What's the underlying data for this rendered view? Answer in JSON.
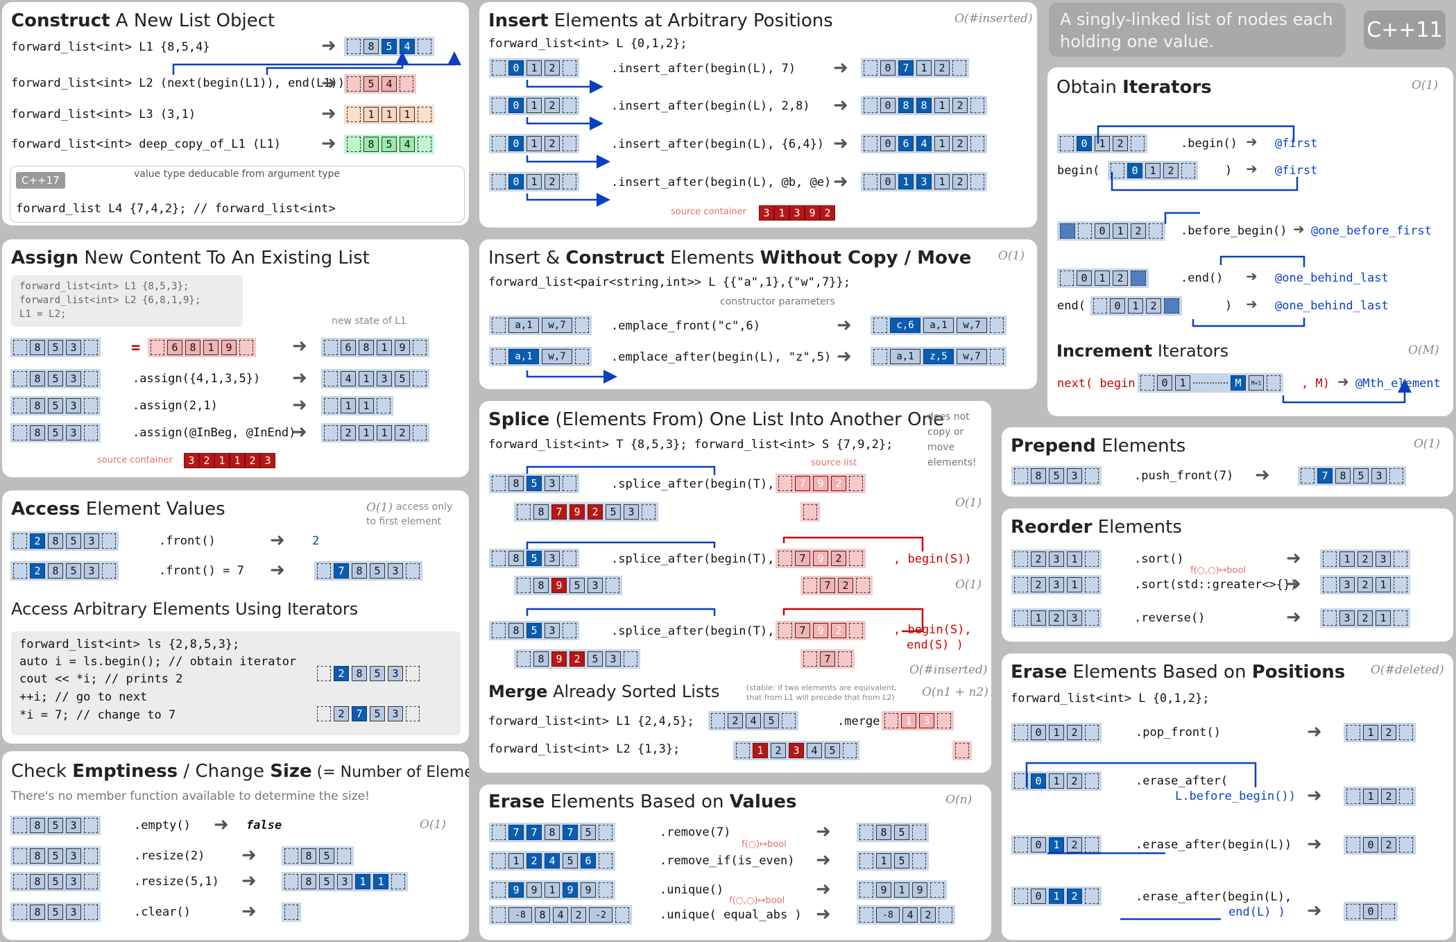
{
  "banner": {
    "intro": "A singly-linked list of nodes each holding one value.",
    "standard": "C++11"
  },
  "construct": {
    "title_b": "Construct",
    "title": " A New List Object",
    "l1": "forward_list<int> L1 {8,5,4}",
    "l2": "forward_list<int> L2 (next(begin(L1)), end(L1))",
    "l3": "forward_list<int> L3 (3,1)",
    "l4": "forward_list<int> deep_copy_of_L1 (L1)",
    "cpp17_tag": "C++17",
    "deduce_note": "value type deducable from argument type",
    "ctad_line": "forward_list      L4  {7,4,2};    // forward_list<int>"
  },
  "assign": {
    "title_b": "Assign",
    "title": " New Content To An Existing List",
    "code": [
      "forward_list<int> L1 {8,5,3};",
      "forward_list<int> L2 {6,8,1,9};",
      "L1              =   L2;"
    ],
    "new_state": "new state of L1",
    "eq": "=",
    "a1": ".assign({4,1,3,5})",
    "a2": ".assign(2,1)",
    "a3": ".assign(@InBeg, @InEnd)",
    "source": "source container"
  },
  "access": {
    "title_b": "Access",
    "title": " Element Values",
    "cx": "O(1)",
    "note1": "access only",
    "note2": "to first element",
    "f1": ".front()",
    "f1r": "2",
    "f2": ".front() = 7",
    "it_title": "Access Arbitrary Elements Using Iterators",
    "code": [
      "forward_list<int> ls {2,8,5,3};",
      "auto i = ls.begin();  // obtain iterator",
      "cout << *i;           // prints 2",
      "++i;                  // go to next",
      "*i = 7;               // change to 7"
    ]
  },
  "empty": {
    "title_a": "Check ",
    "title_b1": "Emptiness",
    "title_m": " / Change ",
    "title_b2": "Size",
    "title_e": " (= Number of Elements)",
    "note": "There's no member function available to determine the size!",
    "e1": ".empty()",
    "e1r": "false",
    "cx": "O(1)",
    "e2": ".resize(2)",
    "e3": ".resize(5,1)",
    "e4": ".clear()"
  },
  "insert": {
    "title_b": "Insert",
    "title": " Elements at Arbitrary Positions",
    "cx": "O(#inserted)",
    "decl": "forward_list<int> L {0,1,2};",
    "i1": ".insert_after(begin(L), 7)",
    "i2": ".insert_after(begin(L), 2,8)",
    "i3": ".insert_after(begin(L), {6,4})",
    "i4": ".insert_after(begin(L), @b, @e)",
    "source": "source container"
  },
  "emplace": {
    "title_a": "Insert & ",
    "title_b1": "Construct",
    "title_m": " Elements ",
    "title_b2": "Without Copy / Move",
    "cx": "O(1)",
    "decl": "forward_list<pair<string,int>> L {{\"a\",1},{\"w\",7}};",
    "ctor": "constructor parameters",
    "e1": ".emplace_front(\"c\",6)",
    "e2": ".emplace_after(begin(L), \"z\",5)"
  },
  "splice": {
    "title_b": "Splice",
    "title": " (Elements From) One List Into Another One",
    "note": [
      "does not",
      "copy or",
      "move",
      "elements!"
    ],
    "decl": "forward_list<int> T {8,5,3};   forward_list<int> S {7,9,2};",
    "s1": ".splice_after(begin(T),",
    "s2": ".splice_after(begin(T),",
    "s2b": ", begin(S))",
    "s3": ".splice_after(begin(T),",
    "s3b": ", begin(S),",
    "s3c": "end(S)  )",
    "src": "source list",
    "cx1": "O(1)",
    "cx2": "O(1)",
    "cx3": "O(#inserted)"
  },
  "merge": {
    "title_b": "Merge",
    "title": " Already Sorted Lists",
    "stable": "(stable: if two elements are equivalent, that from L1 will precede that from L2)",
    "cx": "O(n1 + n2)",
    "l1": "forward_list<int> L1 {2,4,5};",
    "l2": "forward_list<int> L2 {1,3};",
    "op": ".merge("
  },
  "erase_val": {
    "title_a": "Erase",
    "title_m": " Elements Based on ",
    "title_b": "Values",
    "cx": "O(n)",
    "r1": ".remove(7)",
    "r2": ".remove_if(is_even)",
    "r3": ".unique()",
    "r4": ".unique( equal_abs )",
    "pred": "f(○)↦bool",
    "pred2": "f(○,○)↦bool"
  },
  "iterators": {
    "title_a": "Obtain ",
    "title_b": "Iterators",
    "cx": "O(1)",
    "b1": ".begin()",
    "b1r": "@first",
    "b2": "begin(",
    "b2r": "@first",
    "bb": ".before_begin()",
    "bbr": "@one_before_first",
    "e1": ".end()",
    "e1r": "@one_behind_last",
    "e2": "end(",
    "e2r": "@one_behind_last",
    "inc_b": "Increment",
    "inc": " Iterators",
    "inc_cx": "O(M)",
    "next": "next( begin(",
    "next_m": ", M)",
    "next_r": "@Mth_element",
    "pp": "++"
  },
  "prepend": {
    "title_b": "Prepend",
    "title": " Elements",
    "cx": "O(1)",
    "op": ".push_front(7)"
  },
  "reorder": {
    "title_b": "Reorder",
    "title": " Elements",
    "o1": ".sort()",
    "o2": ".sort(std::greater<>{})",
    "o3": ".reverse()",
    "pred": "f(○,○)↦bool"
  },
  "erase_pos": {
    "title_a": "Erase",
    "title_m": " Elements Based on ",
    "title_b": "Positions",
    "cx": "O(#deleted)",
    "decl": "forward_list<int> L {0,1,2};",
    "p1": ".pop_front()",
    "p2": ".erase_after(",
    "p2b": "L.before_begin())",
    "p3": ".erase_after(begin(L))",
    "p4": ".erase_after(begin(L),",
    "p4b": "end(L)  )"
  }
}
